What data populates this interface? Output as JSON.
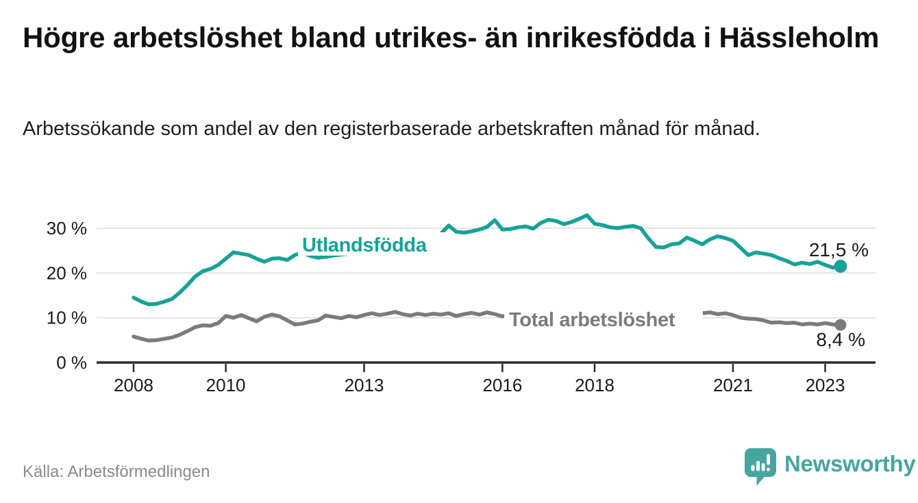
{
  "chart_data": {
    "type": "line",
    "title": "Högre arbetslöshet bland utrikes- än inrikesfödda i Hässleholm",
    "subtitle": "Arbetssökande som andel av den registerbaserade arbetskraften månad för månad.",
    "source": "Källa: Arbetsförmedlingen",
    "unit": "%",
    "x_start_year": 2008,
    "x_end_year": 2023.33,
    "points_per_year": 6,
    "x_tick_years": [
      2008,
      2010,
      2013,
      2016,
      2018,
      2021,
      2023
    ],
    "x_tick_labels": [
      "2008",
      "2010",
      "2013",
      "2016",
      "2018",
      "2021",
      "2023"
    ],
    "y_tick_values": [
      0,
      10,
      20,
      30
    ],
    "y_tick_labels": [
      "0 %",
      "10 %",
      "20 %",
      "30 %"
    ],
    "ylim": [
      0,
      34
    ],
    "grid": true,
    "legend_position": "inline-labels-on-lines",
    "series": [
      {
        "name": "Utlandsfödda",
        "color": "#16a296",
        "end_label": "21,5 %",
        "end_value": 21.5,
        "values": [
          14.5,
          13.6,
          13.0,
          13.1,
          13.6,
          14.2,
          15.6,
          17.3,
          19.2,
          20.4,
          20.9,
          21.8,
          23.2,
          24.6,
          24.3,
          24.0,
          23.2,
          22.5,
          23.2,
          23.3,
          22.9,
          24.0,
          24.6,
          23.8,
          23.4,
          23.6,
          23.9,
          24.1,
          24.3,
          24.4,
          24.5,
          24.7,
          24.9,
          25.1,
          25.4,
          25.7,
          26.0,
          26.3,
          26.7,
          27.3,
          28.8,
          30.6,
          29.2,
          29.0,
          29.3,
          29.7,
          30.3,
          31.8,
          29.7,
          29.8,
          30.2,
          30.4,
          29.9,
          31.2,
          31.9,
          31.6,
          30.9,
          31.4,
          32.1,
          32.9,
          31.0,
          30.7,
          30.2,
          30.0,
          30.3,
          30.5,
          30.0,
          27.7,
          25.8,
          25.7,
          26.4,
          26.6,
          27.9,
          27.2,
          26.4,
          27.5,
          28.2,
          27.8,
          27.2,
          25.6,
          24.0,
          24.6,
          24.3,
          24.0,
          23.3,
          22.7,
          21.9,
          22.3,
          22.0,
          22.5,
          21.8,
          21.2,
          21.5
        ]
      },
      {
        "name": "Total arbetslöshet",
        "color": "#7b7b7b",
        "end_label": "8,4 %",
        "end_value": 8.4,
        "values": [
          5.8,
          5.3,
          4.9,
          5.0,
          5.3,
          5.6,
          6.2,
          7.0,
          7.9,
          8.3,
          8.2,
          8.8,
          10.4,
          10.0,
          10.6,
          9.9,
          9.2,
          10.2,
          10.7,
          10.3,
          9.4,
          8.5,
          8.7,
          9.1,
          9.4,
          10.5,
          10.2,
          9.9,
          10.4,
          10.1,
          10.6,
          11.0,
          10.6,
          10.9,
          11.3,
          10.8,
          10.5,
          10.9,
          10.6,
          10.9,
          10.7,
          11.0,
          10.4,
          10.8,
          11.1,
          10.7,
          11.2,
          10.8,
          10.3,
          10.6,
          10.2,
          10.4,
          10.0,
          10.3,
          10.2,
          10.5,
          10.1,
          10.4,
          10.6,
          10.3,
          10.0,
          10.3,
          9.9,
          10.1,
          9.8,
          10.0,
          9.7,
          9.4,
          9.2,
          9.4,
          9.1,
          9.5,
          10.2,
          10.6,
          11.0,
          11.2,
          10.8,
          11.0,
          10.6,
          10.0,
          9.8,
          9.7,
          9.4,
          8.9,
          9.0,
          8.8,
          8.9,
          8.5,
          8.7,
          8.5,
          8.8,
          8.5,
          8.4
        ]
      }
    ]
  },
  "footer": {
    "brand": "Newsworthy"
  },
  "colors": {
    "accent_teal": "#16a296",
    "series_gray": "#7b7b7b",
    "logo_teal": "#47a5a0",
    "grid": "#dcdcdc",
    "axis": "#2b2b2b",
    "text": "#1a1a1a",
    "muted_text": "#8a8a8a",
    "background": "#ffffff"
  }
}
